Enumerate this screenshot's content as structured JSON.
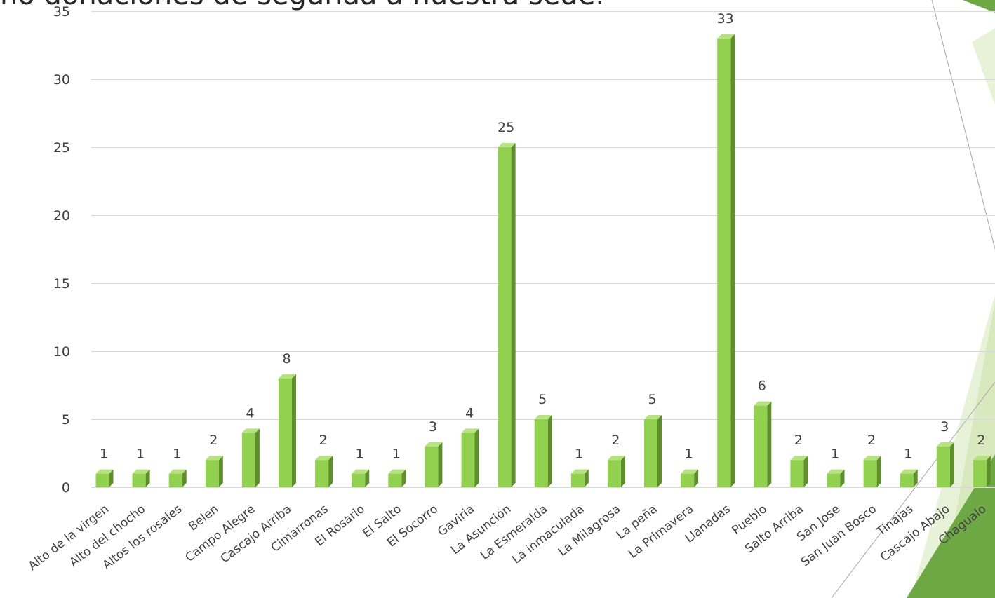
{
  "slide": {
    "title": "no donaciones de segunda a nuestra sede."
  },
  "colors": {
    "bar_front": "#92d050",
    "bar_side": "#5f8f2c",
    "bar_top": "#b6e27f",
    "grid": "#d9d9d9",
    "label": "#404040",
    "accent_dark": "#6da844",
    "accent_light": "#d7e9bd",
    "accent_lighter": "#e8f2d8"
  },
  "chart_data": {
    "type": "bar",
    "categories": [
      "Alto de la virgen",
      "Alto del chocho",
      "Altos los rosales",
      "Belen",
      "Campo Alegre",
      "Cascajo Arriba",
      "Cimarronas",
      "El Rosario",
      "El Salto",
      "El Socorro",
      "Gaviria",
      "La Asunción",
      "La Esmeralda",
      "La inmaculada",
      "La Milagrosa",
      "La peña",
      "La Primavera",
      "Llanadas",
      "Pueblo",
      "Salto Arriba",
      "San Jose",
      "San Juan Bosco",
      "Tinajas",
      "Cascajo Abajo",
      "Chagualo"
    ],
    "values": [
      1,
      1,
      1,
      2,
      4,
      8,
      2,
      1,
      1,
      3,
      4,
      25,
      5,
      1,
      2,
      5,
      1,
      33,
      6,
      2,
      1,
      2,
      1,
      3,
      2
    ],
    "yticks": [
      0,
      5,
      10,
      15,
      20,
      25,
      30,
      35
    ],
    "ylim": [
      0,
      35
    ],
    "grid": true,
    "legend": "none",
    "data_labels": true
  }
}
